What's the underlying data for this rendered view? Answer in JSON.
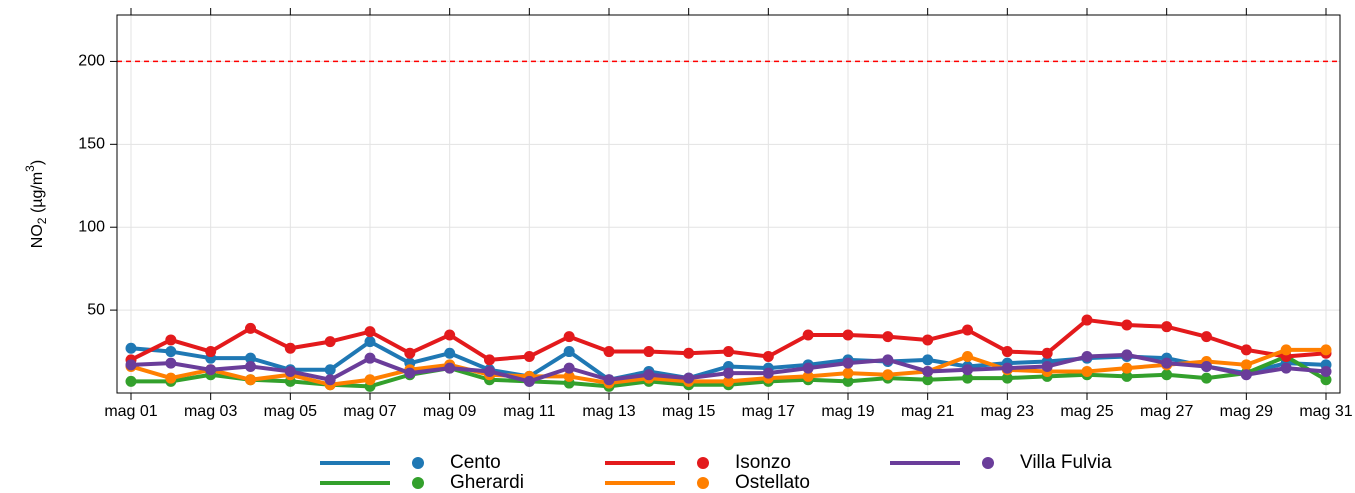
{
  "chart_data": {
    "type": "line",
    "ylabel_parts": [
      "NO",
      "2",
      " (µg/m",
      "3",
      ")"
    ],
    "categories": [
      "mag 01",
      null,
      "mag 03",
      null,
      "mag 05",
      null,
      "mag 07",
      null,
      "mag 09",
      null,
      "mag 11",
      null,
      "mag 13",
      null,
      "mag 15",
      null,
      "mag 17",
      null,
      "mag 19",
      null,
      "mag 21",
      null,
      "mag 23",
      null,
      "mag 25",
      null,
      "mag 27",
      null,
      "mag 29",
      null,
      "mag 31"
    ],
    "series": [
      {
        "name": "Cento",
        "color": "#1f78b4",
        "values": [
          27,
          25,
          21,
          21,
          14,
          14,
          31,
          18,
          24,
          14,
          10,
          25,
          8,
          13,
          9,
          16,
          15,
          17,
          20,
          19,
          20,
          16,
          18,
          19,
          21,
          22,
          21,
          16,
          12,
          18,
          17
        ]
      },
      {
        "name": "Gherardi",
        "color": "#33a02c",
        "values": [
          7,
          7,
          11,
          8,
          7,
          5,
          4,
          11,
          15,
          8,
          7,
          6,
          4,
          7,
          5,
          5,
          7,
          8,
          7,
          9,
          8,
          9,
          9,
          10,
          11,
          10,
          11,
          9,
          12,
          22,
          8
        ]
      },
      {
        "name": "Isonzo",
        "color": "#e31a1c",
        "values": [
          20,
          32,
          25,
          39,
          27,
          31,
          37,
          24,
          35,
          20,
          22,
          34,
          25,
          25,
          24,
          25,
          22,
          35,
          35,
          34,
          32,
          38,
          25,
          24,
          44,
          41,
          40,
          34,
          26,
          22,
          24
        ]
      },
      {
        "name": "Ostellato",
        "color": "#ff7f00",
        "values": [
          16,
          9,
          14,
          8,
          11,
          5,
          8,
          14,
          17,
          11,
          10,
          10,
          6,
          9,
          7,
          7,
          9,
          10,
          12,
          11,
          13,
          22,
          14,
          13,
          13,
          15,
          17,
          19,
          17,
          26,
          26
        ]
      },
      {
        "name": "Villa Fulvia",
        "color": "#6a3d9a",
        "values": [
          17,
          18,
          14,
          16,
          13,
          8,
          21,
          12,
          15,
          13,
          7,
          15,
          8,
          11,
          9,
          12,
          12,
          15,
          18,
          20,
          13,
          14,
          15,
          16,
          22,
          23,
          18,
          16,
          11,
          15,
          13
        ]
      }
    ],
    "ylim": [
      0,
      228
    ],
    "yticks": [
      50,
      100,
      150,
      200
    ],
    "grid": true,
    "hline": {
      "value": 200,
      "color": "#ff0000"
    }
  }
}
